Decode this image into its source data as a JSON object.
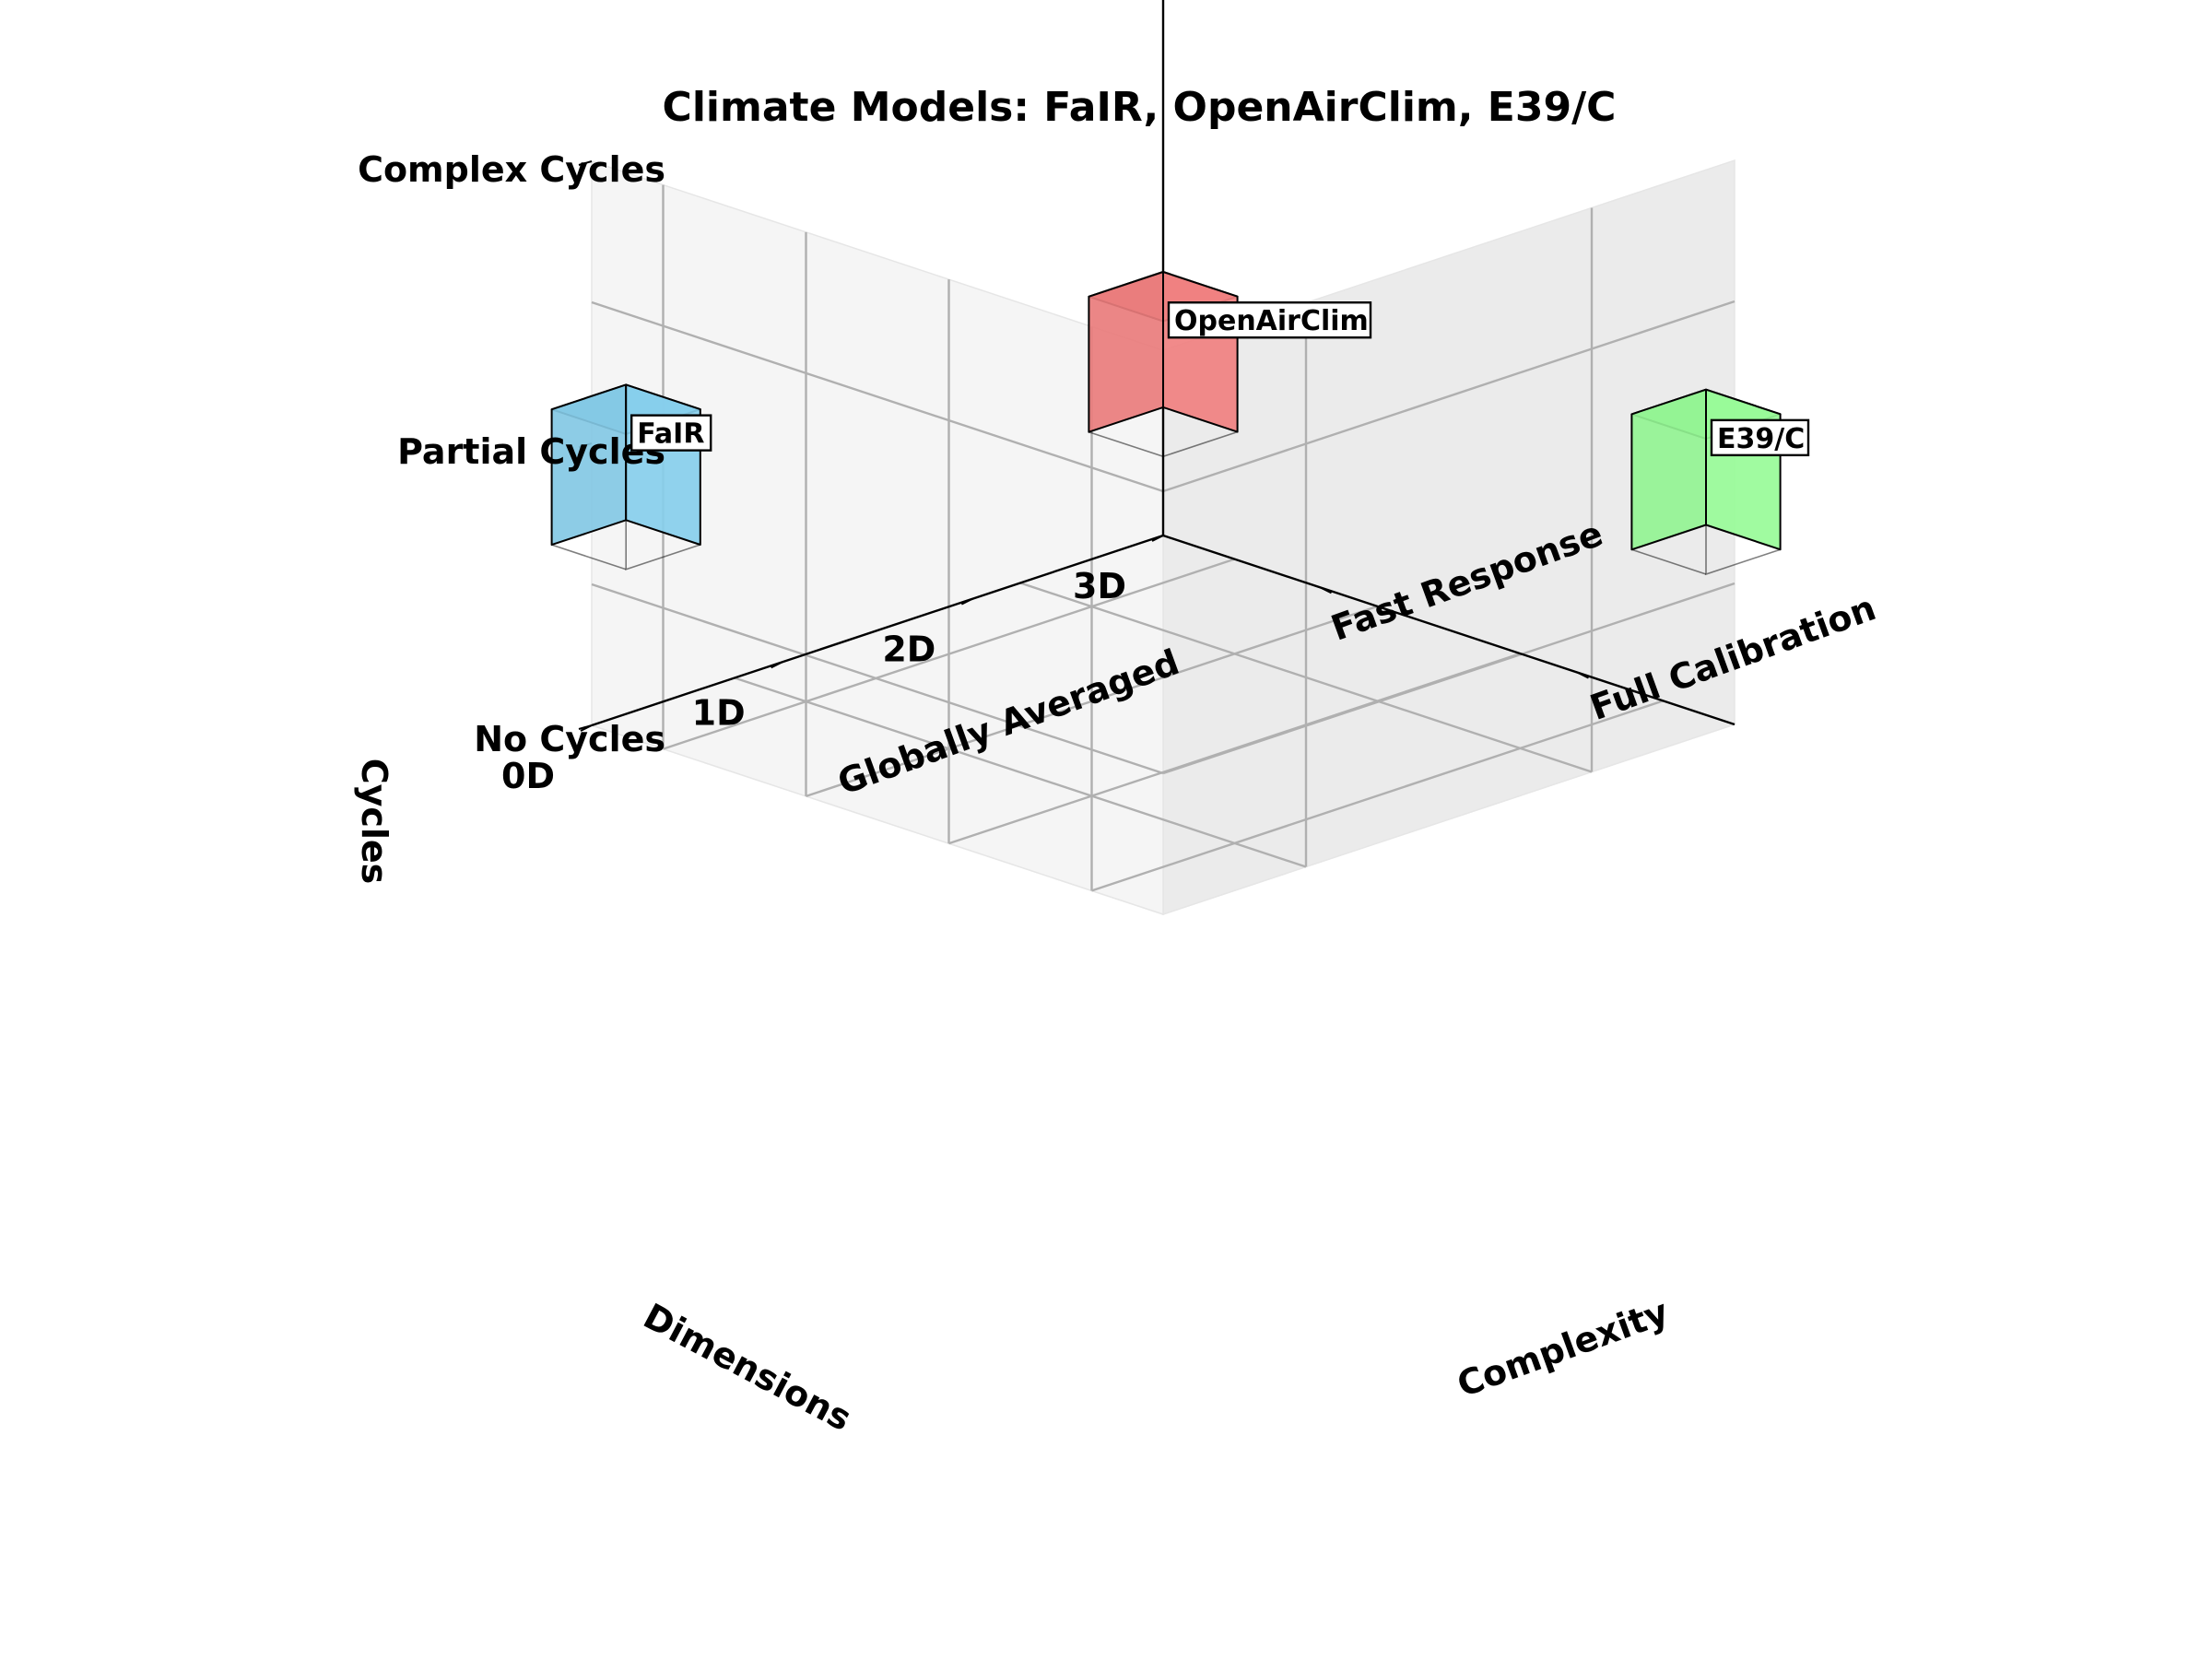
{
  "chart_data": {
    "type": "3d-bar",
    "title": "Climate Models: FaIR, OpenAirClim, E39/C",
    "axes": {
      "x": {
        "label": "Complexity",
        "ticks": [
          "Fast Response",
          "Full Calibration"
        ]
      },
      "y": {
        "label": "Dimensions",
        "ticks": [
          "0D",
          "1D",
          "2D",
          "3D",
          "Globally Averaged"
        ]
      },
      "z": {
        "label": "Cycles",
        "ticks": [
          "No Cycles",
          "Partial Cycles",
          "Complex Cycles"
        ]
      }
    },
    "models": [
      {
        "name": "FaIR",
        "complexity": "Fast Response",
        "dimensions": "0D",
        "cycles": "Partial Cycles",
        "color": "#87ceeb"
      },
      {
        "name": "OpenAirClim",
        "complexity": "Full Calibration",
        "dimensions": "0D",
        "cycles": "Complex Cycles",
        "color": "#f08080"
      },
      {
        "name": "E39/C",
        "complexity": "Full Calibration",
        "dimensions": "3D",
        "cycles": "Partial Cycles",
        "color": "#98fb98"
      }
    ],
    "grid": true
  }
}
